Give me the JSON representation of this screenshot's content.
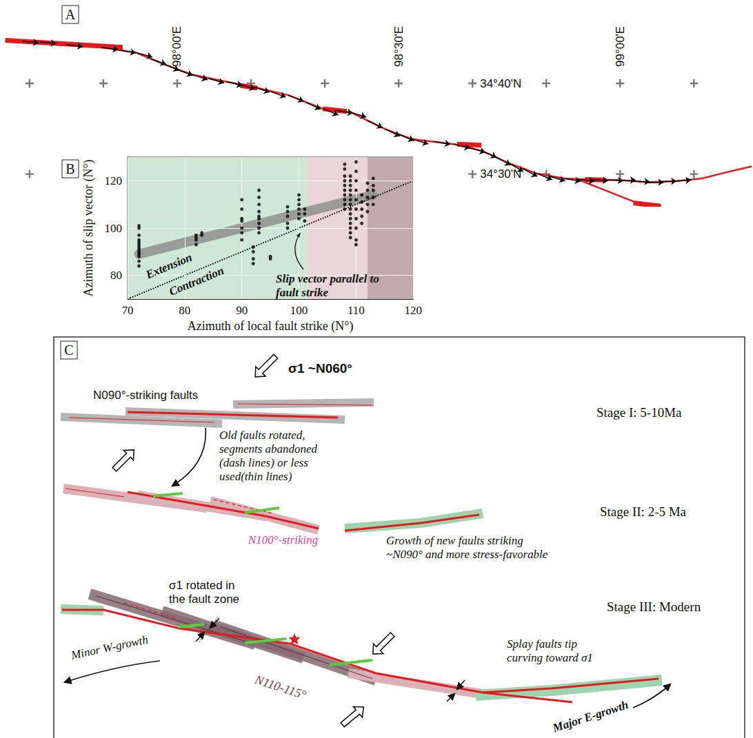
{
  "panel_a": {
    "letter": "A",
    "lon_range": [
      97.6,
      99.3
    ],
    "lat_range": [
      34.44,
      34.82
    ],
    "graticule_lon": [
      97.6667,
      97.8333,
      98,
      98.1667,
      98.3333,
      98.5,
      98.6667,
      98.8333,
      99,
      99.1667
    ],
    "graticule_lat": [
      34.6667,
      34.5
    ],
    "lon_labels": [
      {
        "value": 98,
        "label": "98°00'E"
      },
      {
        "value": 98.5,
        "label": "98°30'E"
      },
      {
        "value": 99,
        "label": "99°00'E"
      }
    ],
    "lat_labels": [
      {
        "value": 34.6667,
        "label": "34°40'N"
      },
      {
        "value": 34.5,
        "label": "34°30'N"
      }
    ],
    "trace_color": "#e41a1c",
    "fault_trace": [
      [
        97.612,
        34.746
      ],
      [
        97.69,
        34.743
      ],
      [
        97.83,
        34.733
      ],
      [
        97.908,
        34.723
      ],
      [
        97.97,
        34.702
      ],
      [
        98.033,
        34.683
      ],
      [
        98.111,
        34.67
      ],
      [
        98.173,
        34.66
      ],
      [
        98.251,
        34.645
      ],
      [
        98.329,
        34.62
      ],
      [
        98.391,
        34.614
      ],
      [
        98.469,
        34.583
      ],
      [
        98.531,
        34.564
      ],
      [
        98.625,
        34.555
      ],
      [
        98.687,
        34.543
      ],
      [
        98.749,
        34.52
      ],
      [
        98.812,
        34.501
      ],
      [
        98.874,
        34.492
      ],
      [
        98.936,
        34.49
      ],
      [
        98.998,
        34.489
      ],
      [
        99.061,
        34.485
      ],
      [
        99.123,
        34.487
      ],
      [
        99.185,
        34.492
      ],
      [
        99.248,
        34.505
      ],
      [
        99.297,
        34.514
      ]
    ],
    "fault_branch": [
      [
        98.905,
        34.49
      ],
      [
        98.967,
        34.47
      ],
      [
        99.045,
        34.445
      ],
      [
        99.092,
        34.442
      ]
    ],
    "fault_segments": [
      [
        [
          97.612,
          34.746
        ],
        [
          97.877,
          34.733
        ]
      ],
      [
        [
          98.142,
          34.663
        ],
        [
          98.181,
          34.658
        ]
      ],
      [
        [
          98.329,
          34.62
        ],
        [
          98.383,
          34.615
        ]
      ],
      [
        [
          98.632,
          34.555
        ],
        [
          98.687,
          34.553
        ]
      ],
      [
        [
          98.921,
          34.49
        ],
        [
          98.967,
          34.489
        ]
      ],
      [
        [
          99.03,
          34.447
        ],
        [
          99.092,
          34.441
        ]
      ]
    ],
    "vector_color": "#000000",
    "slip_vectors": [
      {
        "lon": 97.65,
        "lat": 34.744,
        "azimuth": 95
      },
      {
        "lon": 97.69,
        "lat": 34.743,
        "azimuth": 96
      },
      {
        "lon": 97.75,
        "lat": 34.738,
        "azimuth": 97
      },
      {
        "lon": 97.83,
        "lat": 34.733,
        "azimuth": 98
      },
      {
        "lon": 97.87,
        "lat": 34.728,
        "azimuth": 100
      },
      {
        "lon": 97.908,
        "lat": 34.723,
        "azimuth": 105
      },
      {
        "lon": 97.94,
        "lat": 34.712,
        "azimuth": 110
      },
      {
        "lon": 97.97,
        "lat": 34.702,
        "azimuth": 112
      },
      {
        "lon": 98.0,
        "lat": 34.692,
        "azimuth": 110
      },
      {
        "lon": 98.033,
        "lat": 34.683,
        "azimuth": 108
      },
      {
        "lon": 98.07,
        "lat": 34.676,
        "azimuth": 106
      },
      {
        "lon": 98.111,
        "lat": 34.67,
        "azimuth": 104
      },
      {
        "lon": 98.14,
        "lat": 34.665,
        "azimuth": 106
      },
      {
        "lon": 98.173,
        "lat": 34.66,
        "azimuth": 108
      },
      {
        "lon": 98.21,
        "lat": 34.652,
        "azimuth": 110
      },
      {
        "lon": 98.251,
        "lat": 34.645,
        "azimuth": 112
      },
      {
        "lon": 98.29,
        "lat": 34.632,
        "azimuth": 115
      },
      {
        "lon": 98.329,
        "lat": 34.62,
        "azimuth": 112
      },
      {
        "lon": 98.36,
        "lat": 34.617,
        "azimuth": 100
      },
      {
        "lon": 98.391,
        "lat": 34.614,
        "azimuth": 108
      },
      {
        "lon": 98.43,
        "lat": 34.598,
        "azimuth": 115
      },
      {
        "lon": 98.469,
        "lat": 34.583,
        "azimuth": 116
      },
      {
        "lon": 98.5,
        "lat": 34.573,
        "azimuth": 112
      },
      {
        "lon": 98.531,
        "lat": 34.564,
        "azimuth": 106
      },
      {
        "lon": 98.58,
        "lat": 34.56,
        "azimuth": 100
      },
      {
        "lon": 98.625,
        "lat": 34.555,
        "azimuth": 104
      },
      {
        "lon": 98.66,
        "lat": 34.549,
        "azimuth": 108
      },
      {
        "lon": 98.687,
        "lat": 34.543,
        "azimuth": 114
      },
      {
        "lon": 98.72,
        "lat": 34.531,
        "azimuth": 118
      },
      {
        "lon": 98.749,
        "lat": 34.52,
        "azimuth": 120
      },
      {
        "lon": 98.78,
        "lat": 34.51,
        "azimuth": 118
      },
      {
        "lon": 98.812,
        "lat": 34.501,
        "azimuth": 112
      },
      {
        "lon": 98.84,
        "lat": 34.496,
        "azimuth": 106
      },
      {
        "lon": 98.874,
        "lat": 34.492,
        "azimuth": 100
      },
      {
        "lon": 98.905,
        "lat": 34.49,
        "azimuth": 96
      },
      {
        "lon": 98.936,
        "lat": 34.49,
        "azimuth": 94
      },
      {
        "lon": 98.97,
        "lat": 34.489,
        "azimuth": 92
      },
      {
        "lon": 98.998,
        "lat": 34.489,
        "azimuth": 90
      },
      {
        "lon": 99.03,
        "lat": 34.487,
        "azimuth": 92
      },
      {
        "lon": 99.061,
        "lat": 34.485,
        "azimuth": 90
      },
      {
        "lon": 99.09,
        "lat": 34.486,
        "azimuth": 88
      },
      {
        "lon": 99.123,
        "lat": 34.487,
        "azimuth": 86
      }
    ]
  },
  "chart_data": {
    "type": "scatter",
    "panel_label": "B",
    "x_label": "Azimuth of local fault strike (N°)",
    "y_label": "Azimuth of slip vector (N°)",
    "xlim": [
      70,
      120
    ],
    "ylim": [
      70,
      130
    ],
    "xticks": [
      70,
      80,
      90,
      100,
      110,
      120
    ],
    "yticks": [
      80,
      100,
      120
    ],
    "grid": true,
    "color": "#000000",
    "marker": "circle",
    "x": [
      72,
      72,
      72,
      72,
      72,
      72,
      72,
      72,
      72,
      72,
      72,
      72,
      72,
      82,
      82,
      82,
      82,
      83,
      83,
      90,
      90,
      90,
      90,
      90,
      90,
      90,
      92,
      92,
      92,
      92,
      93,
      93,
      93,
      93,
      93,
      93,
      93,
      93,
      93,
      95,
      95,
      98,
      98,
      98,
      98,
      98,
      100,
      100,
      100,
      100,
      100,
      100,
      101,
      101,
      101,
      108,
      108,
      108,
      108,
      108,
      108,
      108,
      108,
      108,
      108,
      109,
      109,
      109,
      109,
      109,
      109,
      109,
      109,
      109,
      109,
      109,
      109,
      109,
      109,
      110,
      110,
      110,
      110,
      110,
      110,
      110,
      110,
      110,
      110,
      111,
      111,
      111,
      111,
      111,
      112,
      112,
      112,
      112,
      112,
      113,
      113,
      113,
      113,
      113
    ],
    "values": [
      84,
      86,
      88,
      89,
      90,
      91,
      92,
      93,
      94,
      95,
      97,
      100,
      101,
      93,
      95,
      96,
      97,
      97,
      98,
      95,
      98,
      100,
      103,
      104,
      108,
      112,
      85,
      87,
      90,
      92,
      98,
      100,
      102,
      104,
      105,
      107,
      110,
      113,
      116,
      87,
      88,
      100,
      102,
      105,
      107,
      109,
      104,
      106,
      108,
      110,
      112,
      114,
      103,
      106,
      108,
      108,
      110,
      112,
      114,
      116,
      118,
      120,
      122,
      125,
      127,
      96,
      98,
      100,
      102,
      104,
      106,
      108,
      110,
      112,
      114,
      116,
      118,
      120,
      122,
      93,
      95,
      100,
      104,
      108,
      112,
      116,
      120,
      124,
      128,
      102,
      105,
      108,
      111,
      114,
      107,
      110,
      113,
      116,
      119,
      110,
      113,
      116,
      118,
      121
    ],
    "regions": [
      {
        "from": 70,
        "to": 101.5,
        "color": "#cfe8d5"
      },
      {
        "from": 101.5,
        "to": 112,
        "color": "#ead5d8"
      },
      {
        "from": 112,
        "to": 120,
        "color": "#c2aaae"
      }
    ],
    "trend_band": {
      "x": [
        72,
        113
      ],
      "values": [
        89,
        114
      ],
      "color": "#8f8f8f"
    },
    "reference_line": {
      "x": [
        70,
        120
      ],
      "values": [
        70,
        120
      ],
      "color": "#000000",
      "line_style": "dotted",
      "label": "Slip vector parallel to fault strike"
    },
    "annotations": [
      "Extension",
      "Contraction"
    ]
  },
  "panel_c": {
    "letter": "C",
    "sigma1": "σ1 ~N060°",
    "stage_1": {
      "title": "Stage I: 5-10Ma",
      "faults_label": "N090°-striking faults"
    },
    "transition_note": "Old faults rotated, segments abandoned (dash lines) or less used(thin lines)",
    "stage_2": {
      "title": "Stage II: 2-5 Ma",
      "strike_label": "N100°-striking",
      "new_faults_note": "Growth of new faults striking ~N090° and more stress-favorable"
    },
    "stage_3": {
      "title": "Stage III: Modern",
      "rotation_note": "σ1 rotated in the fault zone",
      "strike_label": "N110-115°",
      "west_growth": "Minor W-growth",
      "splay_note": "Splay faults tip curving toward σ1",
      "east_growth": "Major E-growth"
    }
  }
}
